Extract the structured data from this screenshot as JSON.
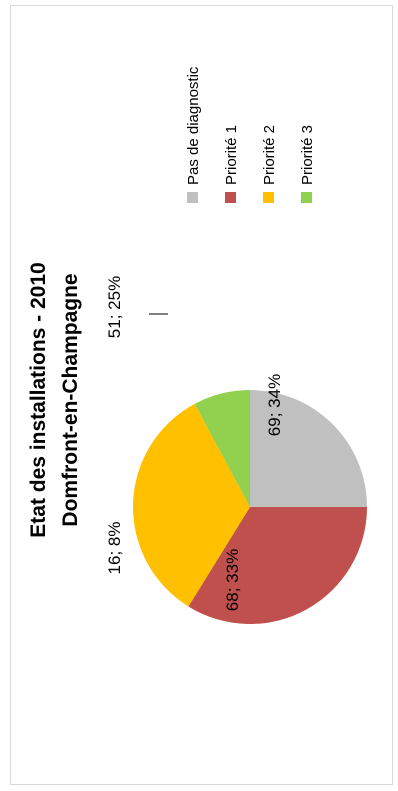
{
  "chart_data": {
    "type": "pie",
    "title": [
      "Etat des installations - 2010",
      "Domfront-en-Champagne"
    ],
    "categories": [
      "Pas de diagnostic",
      "Priorité 1",
      "Priorité 2",
      "Priorité 3"
    ],
    "values": [
      51,
      69,
      68,
      16
    ],
    "percent_labels": [
      "25%",
      "34%",
      "33%",
      "8%"
    ],
    "data_labels": [
      "51; 25%",
      "69; 34%",
      "68; 33%",
      "16; 8%"
    ],
    "colors": [
      "#c0c0c0",
      "#c0504d",
      "#ffc000",
      "#92d050"
    ],
    "legend_position": "right",
    "orientation": "rotated 90° counter-clockwise"
  }
}
